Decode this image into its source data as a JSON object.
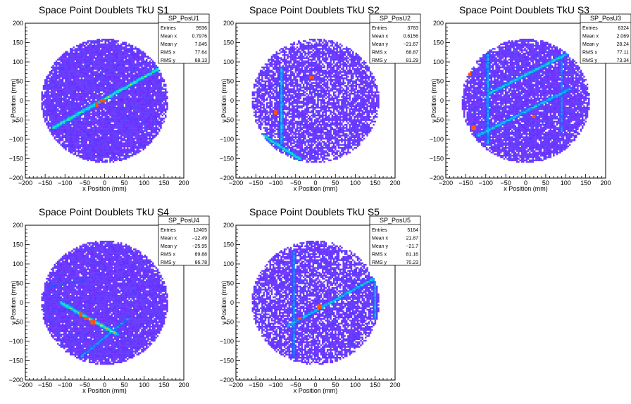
{
  "chart_data": [
    {
      "type": "heatmap",
      "title": "Space Point Doublets TkU S1",
      "xlabel": "x Position (mm)",
      "ylabel": "y Position (mm)",
      "xlim": [
        -200,
        200
      ],
      "ylim": [
        -200,
        200
      ],
      "xticks": [
        -200,
        -150,
        -100,
        -50,
        0,
        50,
        100,
        150,
        200
      ],
      "yticks": [
        -200,
        -150,
        -100,
        -50,
        0,
        50,
        100,
        150,
        200
      ],
      "stats": {
        "name": "SP_PosU1",
        "rows": [
          {
            "label": "Entries",
            "value": "9936"
          },
          {
            "label": "Mean x",
            "value": "0.7976"
          },
          {
            "label": "Mean y",
            "value": "7.845"
          },
          {
            "label": "RMS x",
            "value": "77.64"
          },
          {
            "label": "RMS y",
            "value": "68.13"
          }
        ]
      },
      "region_radius_mm": 160,
      "tracks": [
        {
          "from": [
            -130,
            -70
          ],
          "to": [
            150,
            90
          ],
          "intensity": 0.75
        }
      ],
      "hotspots": [
        [
          -20,
          -10
        ],
        [
          -5,
          0
        ],
        [
          0,
          0
        ]
      ]
    },
    {
      "type": "heatmap",
      "title": "Space Point Doublets TkU S2",
      "xlabel": "x Position (mm)",
      "ylabel": "y Position (mm)",
      "xlim": [
        -200,
        200
      ],
      "ylim": [
        -200,
        200
      ],
      "xticks": [
        -200,
        -150,
        -100,
        -50,
        0,
        50,
        100,
        150,
        200
      ],
      "yticks": [
        -200,
        -150,
        -100,
        -50,
        0,
        50,
        100,
        150,
        200
      ],
      "stats": {
        "name": "SP_PosU2",
        "rows": [
          {
            "label": "Entries",
            "value": "3783"
          },
          {
            "label": "Mean x",
            "value": "0.6156"
          },
          {
            "label": "Mean y",
            "value": "-21.67"
          },
          {
            "label": "RMS x",
            "value": "68.87"
          },
          {
            "label": "RMS y",
            "value": "81.29"
          }
        ]
      },
      "region_radius_mm": 160,
      "tracks": [
        {
          "from": [
            -85,
            80
          ],
          "to": [
            -85,
            -110
          ],
          "intensity": 0.6
        },
        {
          "from": [
            -130,
            -90
          ],
          "to": [
            -40,
            -150
          ],
          "intensity": 0.7
        }
      ],
      "hotspots": [
        [
          -100,
          -30
        ],
        [
          -10,
          60
        ]
      ]
    },
    {
      "type": "heatmap",
      "title": "Space Point Doublets TkU S3",
      "xlabel": "x Position (mm)",
      "ylabel": "y Position (mm)",
      "xlim": [
        -200,
        200
      ],
      "ylim": [
        -200,
        200
      ],
      "xticks": [
        -200,
        -150,
        -100,
        -50,
        0,
        50,
        100,
        150,
        200
      ],
      "yticks": [
        -200,
        -150,
        -100,
        -50,
        0,
        50,
        100,
        150,
        200
      ],
      "stats": {
        "name": "SP_PosU3",
        "rows": [
          {
            "label": "Entries",
            "value": "6324"
          },
          {
            "label": "Mean x",
            "value": "2.069"
          },
          {
            "label": "Mean y",
            "value": "28.24"
          },
          {
            "label": "RMS x",
            "value": "77.11"
          },
          {
            "label": "RMS y",
            "value": "73.34"
          }
        ]
      },
      "region_radius_mm": 160,
      "tracks": [
        {
          "from": [
            -90,
            20
          ],
          "to": [
            120,
            130
          ],
          "intensity": 0.65
        },
        {
          "from": [
            -120,
            -90
          ],
          "to": [
            110,
            30
          ],
          "intensity": 0.6
        },
        {
          "from": [
            -95,
            120
          ],
          "to": [
            -95,
            -110
          ],
          "intensity": 0.55
        },
        {
          "from": [
            90,
            110
          ],
          "to": [
            90,
            -80
          ],
          "intensity": 0.45
        }
      ],
      "hotspots": [
        [
          -140,
          70
        ],
        [
          -130,
          -70
        ],
        [
          20,
          -40
        ]
      ]
    },
    {
      "type": "heatmap",
      "title": "Space Point Doublets TkU S4",
      "xlabel": "x Position (mm)",
      "ylabel": "y Position (mm)",
      "xlim": [
        -200,
        200
      ],
      "ylim": [
        -200,
        200
      ],
      "xticks": [
        -200,
        -150,
        -100,
        -50,
        0,
        50,
        100,
        150,
        200
      ],
      "yticks": [
        -200,
        -150,
        -100,
        -50,
        0,
        50,
        100,
        150,
        200
      ],
      "stats": {
        "name": "SP_PosU4",
        "rows": [
          {
            "label": "Entries",
            "value": "12405"
          },
          {
            "label": "Mean x",
            "value": "-12.49"
          },
          {
            "label": "Mean y",
            "value": "-25.95"
          },
          {
            "label": "RMS x",
            "value": "69.88"
          },
          {
            "label": "RMS y",
            "value": "66.78"
          }
        ]
      },
      "region_radius_mm": 160,
      "tracks": [
        {
          "from": [
            -110,
            0
          ],
          "to": [
            30,
            -80
          ],
          "intensity": 0.8
        },
        {
          "from": [
            -60,
            -140
          ],
          "to": [
            60,
            -40
          ],
          "intensity": 0.5
        },
        {
          "from": [
            -140,
            40
          ],
          "to": [
            -50,
            60
          ],
          "intensity": 0.35
        }
      ],
      "hotspots": [
        [
          -60,
          -30
        ],
        [
          -30,
          -50
        ],
        [
          -45,
          -40
        ]
      ]
    },
    {
      "type": "heatmap",
      "title": "Space Point Doublets TkU S5",
      "xlabel": "x Position (mm)",
      "ylabel": "y Position (mm)",
      "xlim": [
        -200,
        200
      ],
      "ylim": [
        -200,
        200
      ],
      "xticks": [
        -200,
        -150,
        -100,
        -50,
        0,
        50,
        100,
        150,
        200
      ],
      "yticks": [
        -200,
        -150,
        -100,
        -50,
        0,
        50,
        100,
        150,
        200
      ],
      "stats": {
        "name": "SP_PosU5",
        "rows": [
          {
            "label": "Entries",
            "value": "5164"
          },
          {
            "label": "Mean x",
            "value": "21.87"
          },
          {
            "label": "Mean y",
            "value": "-21.7"
          },
          {
            "label": "RMS x",
            "value": "81.16"
          },
          {
            "label": "RMS y",
            "value": "70.23"
          }
        ]
      },
      "region_radius_mm": 160,
      "tracks": [
        {
          "from": [
            -70,
            -60
          ],
          "to": [
            160,
            70
          ],
          "intensity": 0.6
        },
        {
          "from": [
            -55,
            130
          ],
          "to": [
            -55,
            -140
          ],
          "intensity": 0.5
        },
        {
          "from": [
            150,
            60
          ],
          "to": [
            150,
            -40
          ],
          "intensity": 0.5
        }
      ],
      "hotspots": [
        [
          10,
          -10
        ],
        [
          -40,
          -40
        ]
      ]
    }
  ]
}
